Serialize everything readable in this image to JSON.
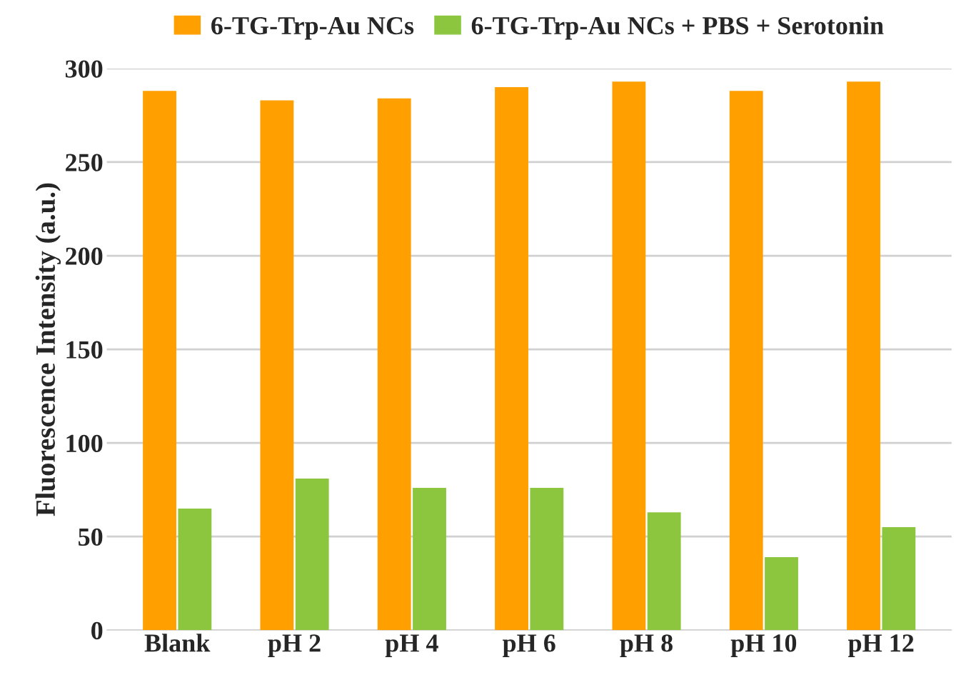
{
  "chart_data": {
    "type": "bar",
    "ylabel": "Fluorescence Intensity (a.u.)",
    "categories": [
      "Blank",
      "pH 2",
      "pH 4",
      "pH 6",
      "pH 8",
      "pH 10",
      "pH 12"
    ],
    "series": [
      {
        "name": "6-TG-Trp-Au NCs",
        "color": "#ff9f00",
        "values": [
          288,
          283,
          284,
          290,
          293,
          288,
          293
        ]
      },
      {
        "name": "6-TG-Trp-Au NCs + PBS + Serotonin",
        "color": "#8cc63f",
        "values": [
          65,
          81,
          76,
          76,
          63,
          39,
          55
        ]
      }
    ],
    "ylim": [
      0,
      300
    ],
    "yticks": [
      0,
      50,
      100,
      150,
      200,
      250,
      300
    ],
    "grid": "y",
    "legend": "top"
  }
}
